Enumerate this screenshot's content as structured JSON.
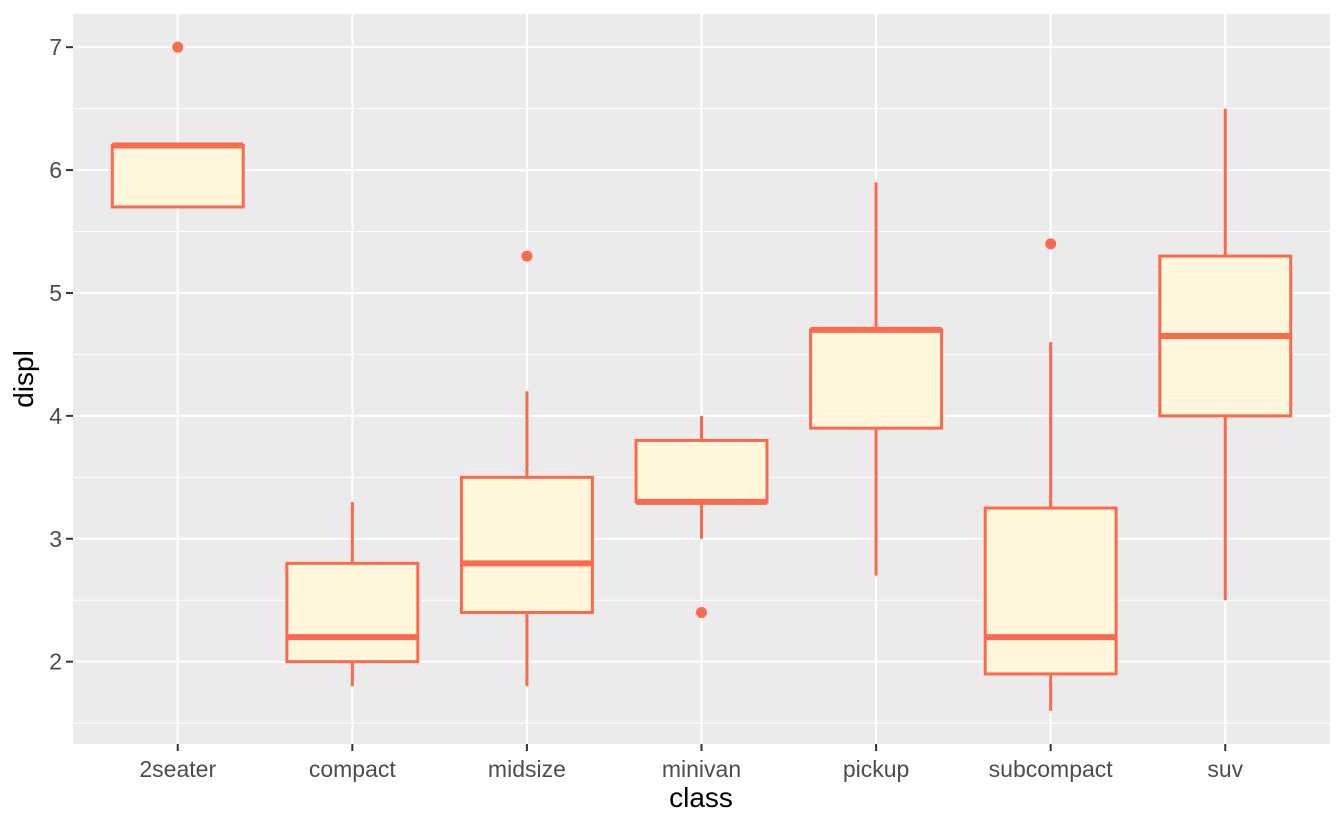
{
  "chart_data": {
    "type": "boxplot",
    "title": "",
    "xlabel": "class",
    "ylabel": "displ",
    "categories": [
      "2seater",
      "compact",
      "midsize",
      "minivan",
      "pickup",
      "subcompact",
      "suv"
    ],
    "y_ticks": [
      2,
      3,
      4,
      5,
      6,
      7
    ],
    "y_minor_ticks": [
      1.5,
      2.5,
      3.5,
      4.5,
      5.5,
      6.5
    ],
    "ylim": [
      1.33,
      7.27
    ],
    "boxes": [
      {
        "category": "2seater",
        "whisker_low": 5.7,
        "q1": 5.7,
        "median": 6.2,
        "q3": 6.2,
        "whisker_high": 6.2,
        "outliers": [
          7.0
        ]
      },
      {
        "category": "compact",
        "whisker_low": 1.8,
        "q1": 2.0,
        "median": 2.2,
        "q3": 2.8,
        "whisker_high": 3.3,
        "outliers": []
      },
      {
        "category": "midsize",
        "whisker_low": 1.8,
        "q1": 2.4,
        "median": 2.8,
        "q3": 3.5,
        "whisker_high": 4.2,
        "outliers": [
          5.3
        ]
      },
      {
        "category": "minivan",
        "whisker_low": 3.0,
        "q1": 3.3,
        "median": 3.3,
        "q3": 3.8,
        "whisker_high": 4.0,
        "outliers": [
          2.4
        ]
      },
      {
        "category": "pickup",
        "whisker_low": 2.7,
        "q1": 3.9,
        "median": 4.7,
        "q3": 4.7,
        "whisker_high": 5.9,
        "outliers": []
      },
      {
        "category": "subcompact",
        "whisker_low": 1.6,
        "q1": 1.9,
        "median": 2.2,
        "q3": 3.25,
        "whisker_high": 4.6,
        "outliers": [
          5.4
        ]
      },
      {
        "category": "suv",
        "whisker_low": 2.5,
        "q1": 4.0,
        "median": 4.65,
        "q3": 5.3,
        "whisker_high": 6.5,
        "outliers": []
      }
    ],
    "colors": {
      "box_border": "#FB6A4D",
      "box_fill": "#FFF6DC",
      "panel_bg": "#EBEBEB",
      "grid": "#FFFFFF",
      "tick_label": "#4D4D4D",
      "axis_title": "#000000",
      "tick_mark": "#333333"
    },
    "layout": {
      "grid": "on",
      "legend": "none",
      "x_major_gridlines": "at category centers",
      "box_width_fraction": 0.75
    }
  }
}
